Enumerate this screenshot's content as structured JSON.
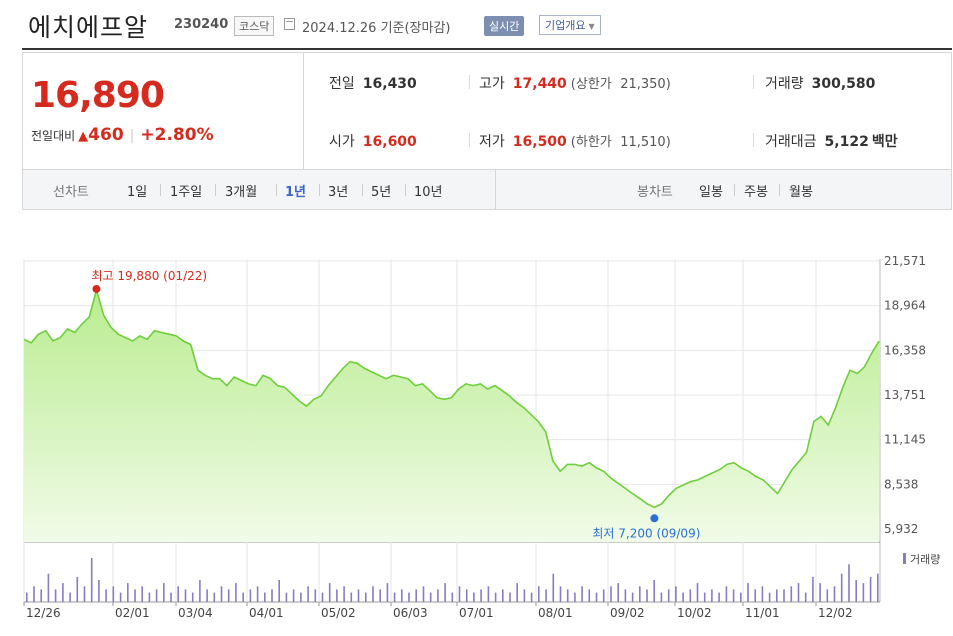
{
  "header": {
    "name": "에치에프알",
    "code": "230240",
    "market": "코스닥",
    "date_text": "2024.12.26 기준(장마감)",
    "realtime_label": "실시간",
    "company_label": "기업개요"
  },
  "price": {
    "current": "16,890",
    "change_label": "전일대비",
    "change": "460",
    "change_pct": "+2.80%"
  },
  "stats": {
    "prev_label": "전일",
    "prev": "16,430",
    "high_label": "고가",
    "high": "17,440",
    "upper_label": "(상한가",
    "upper": "21,350)",
    "volume_label": "거래량",
    "volume": "300,580",
    "open_label": "시가",
    "open": "16,600",
    "low_label": "저가",
    "low": "16,500",
    "lower_label": "(하한가",
    "lower": "11,510)",
    "amount_label": "거래대금",
    "amount": "5,122",
    "amount_unit": "백만"
  },
  "line_tabs": {
    "title": "선차트",
    "items": [
      "1일",
      "1주일",
      "3개월",
      "1년",
      "3년",
      "5년",
      "10년"
    ],
    "active": "1년"
  },
  "candle_tabs": {
    "title": "봉차트",
    "items": [
      "일봉",
      "주봉",
      "월봉"
    ]
  },
  "colors": {
    "up": "#d42b1e",
    "accent": "#3b63c4",
    "line": "#6ecf3b",
    "fill_top": "#b9ec90",
    "fill_bottom": "#f1fbe8"
  },
  "chart_data": {
    "type": "area",
    "y_ticks": [
      "21,571",
      "18,964",
      "16,358",
      "13,751",
      "11,145",
      "8,538",
      "5,932"
    ],
    "ylim": [
      5932,
      21571
    ],
    "x_labels": [
      "12/26",
      "02/01",
      "03/04",
      "04/01",
      "05/02",
      "06/03",
      "07/01",
      "08/01",
      "09/02",
      "10/02",
      "11/01",
      "12/02"
    ],
    "high_annotation": "최고 19,880 (01/22)",
    "low_annotation": "최저 7,200 (09/09)",
    "volume_legend": "거래량",
    "values": [
      17000,
      16800,
      17300,
      17500,
      16900,
      17100,
      17600,
      17400,
      17900,
      18300,
      19880,
      18400,
      17700,
      17300,
      17100,
      16900,
      17200,
      17000,
      17500,
      17400,
      17300,
      17200,
      16900,
      16700,
      15200,
      14900,
      14700,
      14700,
      14300,
      14800,
      14600,
      14400,
      14300,
      14900,
      14700,
      14300,
      14200,
      13800,
      13400,
      13100,
      13500,
      13700,
      14300,
      14800,
      15300,
      15700,
      15600,
      15300,
      15100,
      14900,
      14700,
      14900,
      14800,
      14700,
      14300,
      14400,
      14000,
      13600,
      13500,
      13600,
      14100,
      14400,
      14300,
      14400,
      14100,
      14300,
      14000,
      13700,
      13300,
      13000,
      12600,
      12200,
      11600,
      9900,
      9300,
      9700,
      9700,
      9600,
      9800,
      9500,
      9300,
      8900,
      8600,
      8300,
      8000,
      7700,
      7400,
      7200,
      7400,
      7900,
      8300,
      8500,
      8700,
      8800,
      9000,
      9200,
      9400,
      9700,
      9800,
      9500,
      9300,
      9000,
      8800,
      8400,
      8000,
      8700,
      9400,
      9900,
      10400,
      12200,
      12500,
      12000,
      13000,
      14200,
      15200,
      15000,
      15400,
      16200,
      16890
    ],
    "volumes": [
      3,
      5,
      4,
      9,
      4,
      6,
      3,
      8,
      5,
      14,
      7,
      4,
      5,
      3,
      6,
      4,
      5,
      3,
      4,
      6,
      3,
      5,
      4,
      3,
      7,
      4,
      3,
      5,
      4,
      6,
      3,
      4,
      5,
      3,
      4,
      7,
      3,
      4,
      3,
      5,
      4,
      3,
      6,
      4,
      5,
      3,
      4,
      3,
      5,
      4,
      6,
      3,
      4,
      3,
      4,
      5,
      3,
      4,
      6,
      3,
      5,
      4,
      3,
      4,
      5,
      3,
      4,
      3,
      6,
      4,
      3,
      5,
      4,
      9,
      5,
      4,
      3,
      5,
      4,
      3,
      4,
      5,
      6,
      4,
      3,
      5,
      4,
      7,
      3,
      4,
      5,
      3,
      4,
      6,
      3,
      4,
      3,
      5,
      4,
      3,
      6,
      4,
      5,
      3,
      4,
      4,
      5,
      6,
      3,
      8,
      6,
      4,
      5,
      9,
      12,
      7,
      6,
      8,
      9
    ]
  }
}
